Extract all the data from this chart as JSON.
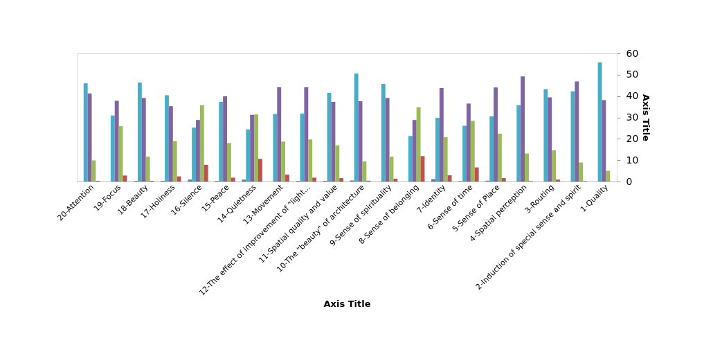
{
  "chart_data": {
    "type": "bar",
    "xlabel": "Axis Title",
    "ylabel": "Axis Title",
    "categories": [
      "20-Attention",
      "19-Focus",
      "18-Beauty",
      "17-Holiness",
      "16-Silence",
      "15-Peace",
      "14-Quietness",
      "13-Movement",
      "12-The effect of improvement of \"light...",
      "11-Spatial quality and value",
      "10-The \"beauty\" of architecture",
      "9-Sense of spirituality",
      "8-Sense of belonging",
      "7-Identity",
      "6-Sense of time",
      "5-Sense of Place",
      "4-Spatial perception",
      "3-Routing",
      "2-Induction of special sense and spirit",
      "1-Quality"
    ],
    "series": [
      {
        "color": "#4f81bd",
        "values": [
          0,
          0,
          0.3,
          0.3,
          0.9,
          0.3,
          0.9,
          0,
          0.3,
          0.3,
          0.5,
          0,
          0,
          1.1,
          0.2,
          0.4,
          0,
          0,
          0,
          0
        ]
      },
      {
        "color": "#4bacc6",
        "values": [
          46,
          30.9,
          46.3,
          40.4,
          25.2,
          37.3,
          24.4,
          31.6,
          31.8,
          41.5,
          50.5,
          45.7,
          21.3,
          29.8,
          26.1,
          30.5,
          35.7,
          43.2,
          42.2,
          55.7
        ]
      },
      {
        "color": "#8064a2",
        "values": [
          41.2,
          37.8,
          39.1,
          35.3,
          28.8,
          39.9,
          31.2,
          44.1,
          44.1,
          37.3,
          37.6,
          39.1,
          28.8,
          43.8,
          36.5,
          44.0,
          49.2,
          39.4,
          46.9,
          38.1
        ]
      },
      {
        "color": "#9bbb59",
        "values": [
          9.9,
          25.9,
          11.6,
          18.9,
          35.7,
          18,
          31.4,
          18.7,
          19.7,
          16.9,
          9.4,
          11.6,
          34.7,
          20.8,
          28.4,
          22.4,
          13.1,
          14.6,
          8.9,
          5.0
        ]
      },
      {
        "color": "#c0504d",
        "values": [
          0.3,
          2.8,
          0.3,
          2.4,
          7.8,
          1.8,
          10.6,
          3.2,
          1.8,
          1.6,
          0.4,
          1.3,
          11.9,
          2.9,
          6.6,
          1.6,
          0.2,
          0.9,
          0.2,
          0
        ]
      }
    ],
    "ylim": [
      0,
      60
    ],
    "yticks": [
      0,
      10,
      20,
      30,
      40,
      50,
      60
    ],
    "grid": false,
    "legend": false
  }
}
